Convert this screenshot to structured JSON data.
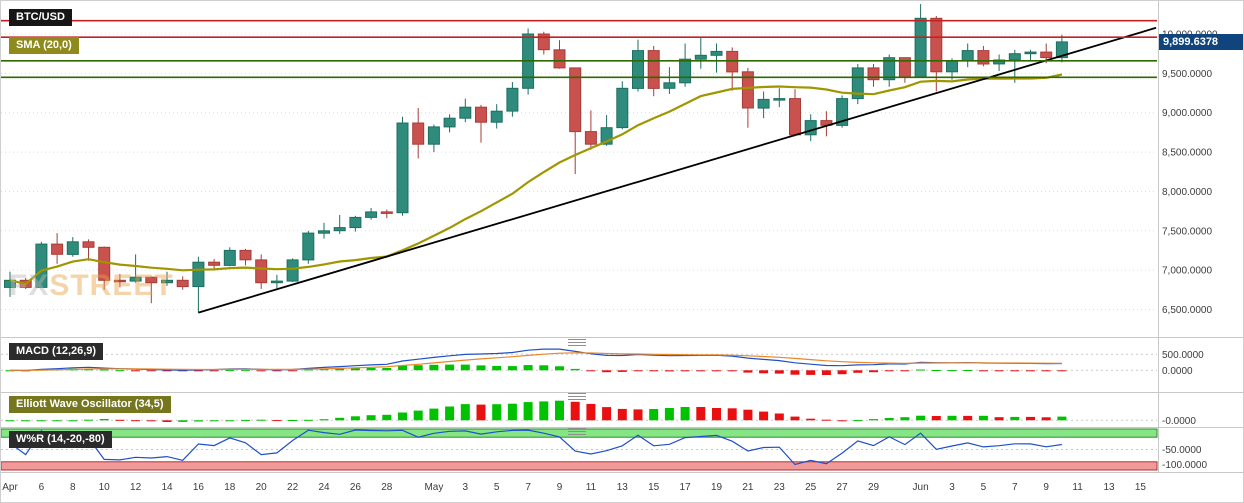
{
  "watermark": {
    "fx": "FX",
    "street": "STREET"
  },
  "badges": {
    "symbol": "BTC/USD",
    "sma": "SMA (20,0)",
    "macd": "MACD (12,26,9)",
    "ewo": "Elliott Wave Oscillator (34,5)",
    "wpr": "W%R (14,-20,-80)"
  },
  "current_price": {
    "value": 9899.6378,
    "label": "9,899.6378"
  },
  "chart_data": {
    "type": "candlestick",
    "symbol": "BTC/USD",
    "timeframe": "daily",
    "colors": {
      "up": "#2f8b7b",
      "up_border": "#1d6f60",
      "down": "#c9524e",
      "down_border": "#a83c38"
    },
    "y_axis": {
      "min": 6150,
      "max": 10420,
      "ticks": [
        {
          "v": 10000,
          "label": "10,000.0000"
        },
        {
          "v": 9500,
          "label": "9,500.0000"
        },
        {
          "v": 9000,
          "label": "9,000.0000"
        },
        {
          "v": 8500,
          "label": "8,500.0000"
        },
        {
          "v": 8000,
          "label": "8,000.0000"
        },
        {
          "v": 7500,
          "label": "7,500.0000"
        },
        {
          "v": 7000,
          "label": "7,000.0000"
        },
        {
          "v": 6500,
          "label": "6,500.0000"
        }
      ]
    },
    "x_ticks": [
      {
        "i": 0,
        "label": "Apr"
      },
      {
        "i": 2,
        "label": "6"
      },
      {
        "i": 4,
        "label": "8"
      },
      {
        "i": 6,
        "label": "10"
      },
      {
        "i": 8,
        "label": "12"
      },
      {
        "i": 10,
        "label": "14"
      },
      {
        "i": 12,
        "label": "16"
      },
      {
        "i": 14,
        "label": "18"
      },
      {
        "i": 16,
        "label": "20"
      },
      {
        "i": 18,
        "label": "22"
      },
      {
        "i": 20,
        "label": "24"
      },
      {
        "i": 22,
        "label": "26"
      },
      {
        "i": 24,
        "label": "28"
      },
      {
        "i": 27,
        "label": "May"
      },
      {
        "i": 29,
        "label": "3"
      },
      {
        "i": 31,
        "label": "5"
      },
      {
        "i": 33,
        "label": "7"
      },
      {
        "i": 35,
        "label": "9"
      },
      {
        "i": 37,
        "label": "11"
      },
      {
        "i": 39,
        "label": "13"
      },
      {
        "i": 41,
        "label": "15"
      },
      {
        "i": 43,
        "label": "17"
      },
      {
        "i": 45,
        "label": "19"
      },
      {
        "i": 47,
        "label": "21"
      },
      {
        "i": 49,
        "label": "23"
      },
      {
        "i": 51,
        "label": "25"
      },
      {
        "i": 53,
        "label": "27"
      },
      {
        "i": 55,
        "label": "29"
      },
      {
        "i": 58,
        "label": "Jun"
      },
      {
        "i": 60,
        "label": "3"
      },
      {
        "i": 62,
        "label": "5"
      },
      {
        "i": 64,
        "label": "7"
      },
      {
        "i": 66,
        "label": "9"
      },
      {
        "i": 68,
        "label": "11"
      },
      {
        "i": 70,
        "label": "13"
      },
      {
        "i": 72,
        "label": "15"
      }
    ],
    "candle_columns": [
      "date",
      "open",
      "high",
      "low",
      "close"
    ],
    "candles": [
      [
        "Apr 4",
        6780,
        6980,
        6660,
        6870
      ],
      [
        "Apr 5",
        6870,
        6900,
        6760,
        6780
      ],
      [
        "Apr 6",
        6780,
        7360,
        6770,
        7330
      ],
      [
        "Apr 7",
        7330,
        7470,
        7080,
        7200
      ],
      [
        "Apr 8",
        7200,
        7420,
        7170,
        7360
      ],
      [
        "Apr 9",
        7360,
        7390,
        7120,
        7290
      ],
      [
        "Apr 10",
        7290,
        7300,
        6750,
        6870
      ],
      [
        "Apr 11",
        6870,
        6950,
        6780,
        6860
      ],
      [
        "Apr 12",
        6860,
        7200,
        6840,
        6910
      ],
      [
        "Apr 13",
        6910,
        6920,
        6580,
        6840
      ],
      [
        "Apr 14",
        6840,
        6980,
        6800,
        6870
      ],
      [
        "Apr 15",
        6870,
        6920,
        6750,
        6790
      ],
      [
        "Apr 16",
        6790,
        7170,
        6460,
        7100
      ],
      [
        "Apr 17",
        7100,
        7140,
        7010,
        7060
      ],
      [
        "Apr 18",
        7060,
        7290,
        7050,
        7250
      ],
      [
        "Apr 19",
        7250,
        7270,
        7060,
        7130
      ],
      [
        "Apr 20",
        7130,
        7200,
        6760,
        6840
      ],
      [
        "Apr 21",
        6840,
        6940,
        6770,
        6860
      ],
      [
        "Apr 22",
        6860,
        7150,
        6850,
        7130
      ],
      [
        "Apr 23",
        7130,
        7500,
        7080,
        7470
      ],
      [
        "Apr 24",
        7470,
        7600,
        7400,
        7500
      ],
      [
        "Apr 25",
        7500,
        7700,
        7460,
        7540
      ],
      [
        "Apr 26",
        7540,
        7690,
        7490,
        7670
      ],
      [
        "Apr 27",
        7670,
        7790,
        7640,
        7740
      ],
      [
        "Apr 28",
        7740,
        7770,
        7660,
        7730
      ],
      [
        "Apr 29",
        7730,
        8950,
        7690,
        8870
      ],
      [
        "Apr 30",
        8870,
        9060,
        8420,
        8600
      ],
      [
        "May 1",
        8600,
        8850,
        8500,
        8820
      ],
      [
        "May 2",
        8820,
        8980,
        8750,
        8930
      ],
      [
        "May 3",
        8930,
        9180,
        8880,
        9070
      ],
      [
        "May 4",
        9070,
        9100,
        8620,
        8880
      ],
      [
        "May 5",
        8880,
        9110,
        8800,
        9020
      ],
      [
        "May 6",
        9020,
        9390,
        8950,
        9310
      ],
      [
        "May 7",
        9310,
        10070,
        9230,
        10000
      ],
      [
        "May 8",
        10000,
        10030,
        9740,
        9800
      ],
      [
        "May 9",
        9800,
        9920,
        9560,
        9570
      ],
      [
        "May 10",
        9570,
        9570,
        8220,
        8760
      ],
      [
        "May 11",
        8760,
        9030,
        8530,
        8600
      ],
      [
        "May 12",
        8600,
        8970,
        8580,
        8810
      ],
      [
        "May 13",
        8810,
        9400,
        8790,
        9310
      ],
      [
        "May 14",
        9310,
        9930,
        9270,
        9790
      ],
      [
        "May 15",
        9790,
        9850,
        9210,
        9310
      ],
      [
        "May 16",
        9310,
        9580,
        9240,
        9380
      ],
      [
        "May 17",
        9380,
        9880,
        9330,
        9680
      ],
      [
        "May 18",
        9680,
        9950,
        9560,
        9730
      ],
      [
        "May 19",
        9730,
        9880,
        9510,
        9780
      ],
      [
        "May 20",
        9780,
        9830,
        9280,
        9520
      ],
      [
        "May 21",
        9520,
        9570,
        8810,
        9060
      ],
      [
        "May 22",
        9060,
        9270,
        8930,
        9170
      ],
      [
        "May 23",
        9170,
        9310,
        9070,
        9180
      ],
      [
        "May 24",
        9180,
        9300,
        8700,
        8720
      ],
      [
        "May 25",
        8720,
        8980,
        8640,
        8900
      ],
      [
        "May 26",
        8900,
        9020,
        8700,
        8840
      ],
      [
        "May 27",
        8840,
        9220,
        8810,
        9180
      ],
      [
        "May 28",
        9180,
        9620,
        9110,
        9570
      ],
      [
        "May 29",
        9570,
        9620,
        9330,
        9420
      ],
      [
        "May 30",
        9420,
        9740,
        9330,
        9700
      ],
      [
        "May 31",
        9700,
        9700,
        9380,
        9450
      ],
      [
        "Jun 1",
        9450,
        10380,
        9450,
        10200
      ],
      [
        "Jun 2",
        10200,
        10230,
        9270,
        9520
      ],
      [
        "Jun 3",
        9520,
        9690,
        9420,
        9660
      ],
      [
        "Jun 4",
        9660,
        9880,
        9580,
        9790
      ],
      [
        "Jun 5",
        9790,
        9850,
        9590,
        9620
      ],
      [
        "Jun 6",
        9620,
        9740,
        9530,
        9670
      ],
      [
        "Jun 7",
        9670,
        9800,
        9380,
        9750
      ],
      [
        "Jun 8",
        9750,
        9800,
        9660,
        9770
      ],
      [
        "Jun 9",
        9770,
        9880,
        9630,
        9700
      ],
      [
        "Jun 10",
        9700,
        9990,
        9640,
        9900
      ]
    ],
    "overlays": {
      "sma": {
        "period": 20,
        "color": "#a09600"
      },
      "trendline": {
        "from": {
          "index": 12,
          "price": 6460
        },
        "to": {
          "index": 73,
          "price": 10080
        },
        "color": "#000000"
      },
      "hlines": [
        {
          "price": 10170,
          "color": "#c42222"
        },
        {
          "price": 9960,
          "color": "#c42222"
        },
        {
          "price": 9660,
          "color": "#2d6a00"
        },
        {
          "price": 9450,
          "color": "#2d6a00"
        }
      ]
    },
    "indicators": [
      {
        "name": "MACD",
        "params": [
          12,
          26,
          9
        ],
        "axis_labels": [
          {
            "v": 500,
            "label": "500.0000"
          },
          {
            "v": 0,
            "label": "0.0000"
          }
        ],
        "range": [
          -650,
          950
        ],
        "colors": {
          "macd": "#2050c8",
          "signal": "#e8872a",
          "up": "#00c200",
          "down": "#e81010"
        }
      },
      {
        "name": "Elliott Wave Oscillator",
        "params": [
          34,
          5
        ],
        "axis_labels": [
          {
            "v": 0,
            "label": "-0.0000"
          }
        ],
        "range": [
          -500,
          2300
        ],
        "colors": {
          "up": "#00c200",
          "down": "#e81010"
        }
      },
      {
        "name": "Williams %R",
        "params": [
          14,
          -20,
          -80
        ],
        "axis_labels": [
          {
            "v": -50,
            "label": "-50.0000"
          },
          {
            "v": -100,
            "label": "-100.0000"
          }
        ],
        "range": [
          0,
          -100
        ],
        "zones": {
          "overbought": -20,
          "oversold": -80,
          "ob_color": "#86e686",
          "ob_border": "#2e8b2e",
          "os_color": "#f29a9a",
          "os_border": "#b03030"
        },
        "line_color": "#2050c8"
      }
    ]
  }
}
